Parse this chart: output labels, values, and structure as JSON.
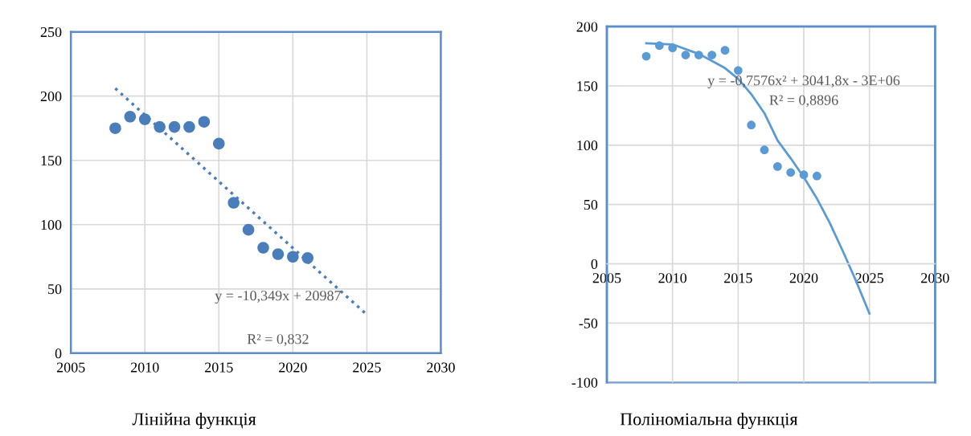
{
  "chart_data": [
    {
      "type": "scatter",
      "x": [
        2008,
        2009,
        2010,
        2011,
        2012,
        2013,
        2014,
        2015,
        2016,
        2017,
        2018,
        2019,
        2020,
        2021
      ],
      "xlim": [
        2005,
        2030
      ],
      "xticks": [
        2005,
        2010,
        2015,
        2020,
        2025,
        2030
      ],
      "ylim": [
        0,
        250
      ],
      "yticks": [
        0,
        50,
        100,
        150,
        200,
        250
      ],
      "grid": true,
      "legend": false,
      "series": [
        {
          "marker": "circle",
          "color": "#4a7ebb",
          "values": [
            175,
            184,
            182,
            176,
            176,
            176,
            180,
            163,
            117,
            96,
            82,
            77,
            75,
            74
          ]
        },
        {
          "type": "line",
          "marker": "none",
          "color": "#4a7ebb",
          "line_style": "dotted",
          "x": [
            2008,
            2025
          ],
          "values": [
            206,
            30
          ]
        }
      ],
      "annotations": [
        "y = -10,349x + 20987",
        "R² = 0,832",
        "Лінійна функція"
      ]
    },
    {
      "type": "scatter",
      "x": [
        2008,
        2009,
        2010,
        2011,
        2012,
        2013,
        2014,
        2015,
        2016,
        2017,
        2018,
        2019,
        2020,
        2021
      ],
      "xlim": [
        2005,
        2030
      ],
      "xticks": [
        2005,
        2010,
        2015,
        2020,
        2025,
        2030
      ],
      "ylim": [
        -100,
        200
      ],
      "yticks": [
        -100,
        -50,
        0,
        50,
        100,
        150,
        200
      ],
      "grid": true,
      "legend": false,
      "series": [
        {
          "marker": "circle",
          "color": "#5b9bd5",
          "values": [
            175,
            184,
            182,
            176,
            176,
            176,
            180,
            163,
            117,
            96,
            82,
            77,
            75,
            74
          ]
        },
        {
          "type": "line",
          "marker": "none",
          "color": "#5b9bd5",
          "line_style": "solid",
          "x": [
            2008,
            2010,
            2012,
            2014,
            2015,
            2016,
            2017,
            2018,
            2019,
            2020,
            2021,
            2022,
            2023,
            2024,
            2025
          ],
          "values": [
            186,
            185,
            177,
            165,
            156,
            143,
            127,
            104,
            89,
            73,
            55,
            34,
            10,
            -15,
            -42
          ]
        }
      ],
      "annotations": [
        "y = -0,7576x² + 3041,8x - 3E+06",
        "R² = 0,8896",
        "Поліноміальна функція"
      ]
    }
  ]
}
